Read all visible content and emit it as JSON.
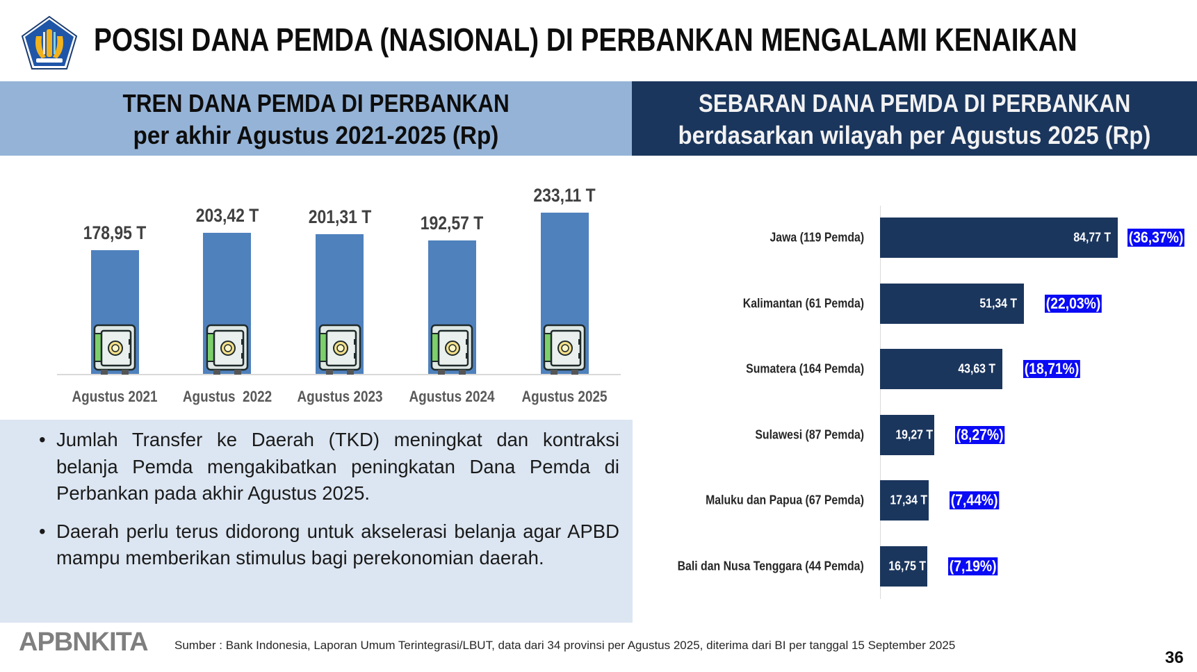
{
  "header": {
    "title": "POSISI DANA PEMDA (NASIONAL) DI PERBANKAN MENGALAMI KENAIKAN"
  },
  "left_panel": {
    "title_line1": "TREN DANA PEMDA DI PERBANKAN",
    "title_line2": "per akhir Agustus 2021-2025 (Rp)"
  },
  "right_panel": {
    "title_line1": "SEBARAN DANA PEMDA DI PERBANKAN",
    "title_line2": "berdasarkan wilayah per Agustus 2025 (Rp)"
  },
  "chart_data": [
    {
      "type": "bar",
      "orientation": "vertical",
      "categories": [
        "Agustus 2021",
        "Agustus  2022",
        "Agustus 2023",
        "Agustus 2024",
        "Agustus 2025"
      ],
      "values": [
        178.95,
        203.42,
        201.31,
        192.57,
        233.11
      ],
      "value_labels": [
        "178,95 T",
        "203,42 T",
        "201,31 T",
        "192,57 T",
        "233,11 T"
      ],
      "unit": "T (triliun Rp)",
      "ylim": [
        0,
        250
      ],
      "grid": false,
      "bar_color": "#4f81bd",
      "bar_icon": "safe-icon"
    },
    {
      "type": "bar",
      "orientation": "horizontal",
      "categories": [
        "Jawa (119 Pemda)",
        "Kalimantan (61 Pemda)",
        "Sumatera (164 Pemda)",
        "Sulawesi (87 Pemda)",
        "Maluku dan Papua (67 Pemda)",
        "Bali dan Nusa Tenggara (44 Pemda)"
      ],
      "values": [
        84.77,
        51.34,
        43.63,
        19.27,
        17.34,
        16.75
      ],
      "value_labels": [
        "84,77 T",
        "51,34 T",
        "43,63 T",
        "19,27 T",
        "17,34 T",
        "16,75 T"
      ],
      "percent_labels": [
        "(36,37%)",
        "(22,03%)",
        "(18,71%)",
        "(8,27%)",
        "(7,44%)",
        "(7,19%)"
      ],
      "xlim": [
        0,
        100
      ],
      "grid": false,
      "bar_color": "#1b365d",
      "percent_badge_color": "#0a0af5"
    }
  ],
  "bullets": [
    "Jumlah Transfer ke Daerah (TKD) meningkat dan kontraksi belanja Pemda mengakibatkan peningkatan Dana Pemda di Perbankan pada akhir Agustus 2025.",
    "Daerah perlu terus didorong untuk akselerasi belanja agar APBD mampu memberikan stimulus bagi perekonomian daerah."
  ],
  "footer": {
    "brand": "APBNKITA",
    "source": "Sumber : Bank Indonesia, Laporan Umum Terintegrasi/LBUT, data dari 34 provinsi per Agustus 2025, diterima dari BI per tanggal 15 September 2025",
    "page_number": "36"
  }
}
